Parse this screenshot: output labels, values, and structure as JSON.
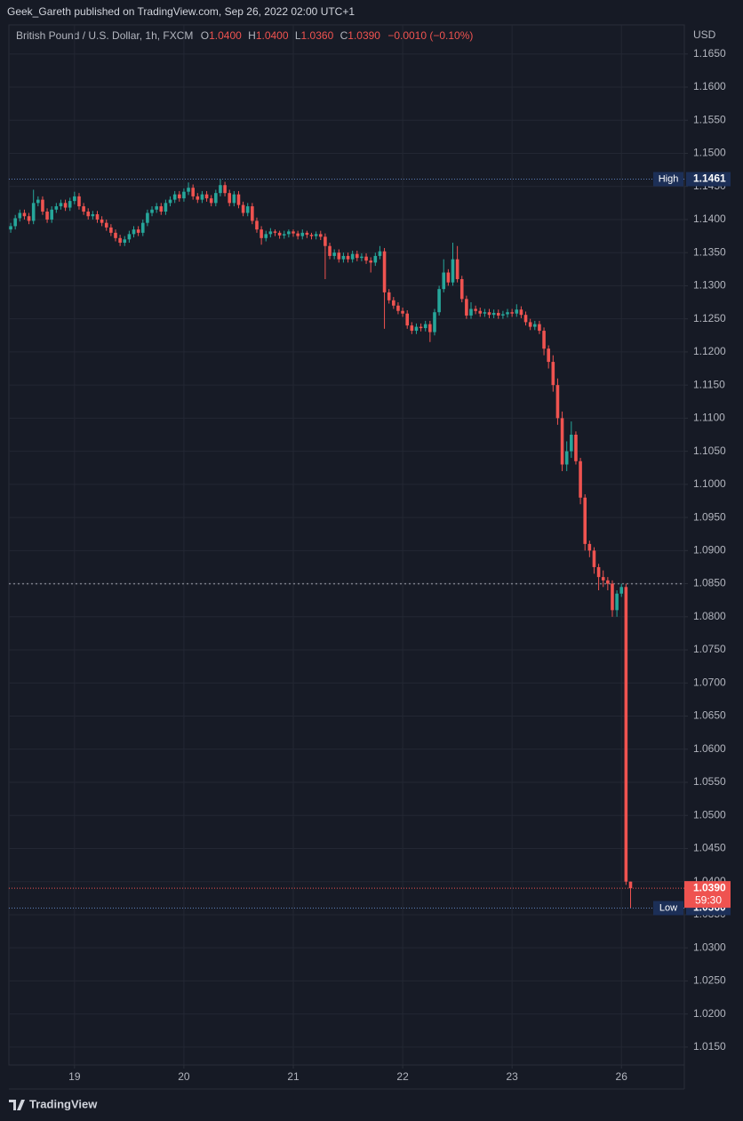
{
  "chart_data": {
    "type": "candlestick",
    "publisher_line": "Geek_Gareth published on TradingView.com, Sep 26, 2022 02:00 UTC+1",
    "title": "British Pound / U.S. Dollar, 1h, FXCM",
    "ohlc_header": {
      "o_label": "O",
      "o": "1.0400",
      "h_label": "H",
      "h": "1.0400",
      "l_label": "L",
      "l": "1.0360",
      "c_label": "C",
      "c": "1.0390",
      "change": "−0.0010 (−0.10%)"
    },
    "y_unit": "USD",
    "brand": "TradingView",
    "up_color": "#26a69a",
    "down_color": "#ef5350",
    "grid": true,
    "xlim": [
      -0.4,
      147.8
    ],
    "xticks": [
      {
        "value": 14,
        "label": "19"
      },
      {
        "value": 38,
        "label": "20"
      },
      {
        "value": 62,
        "label": "21"
      },
      {
        "value": 86,
        "label": "22"
      },
      {
        "value": 110,
        "label": "23"
      },
      {
        "value": 134,
        "label": "26"
      }
    ],
    "ylim": [
      1.0123,
      1.1694
    ],
    "yticks": [
      {
        "value": 1.015,
        "label": "1.0150"
      },
      {
        "value": 1.02,
        "label": "1.0200"
      },
      {
        "value": 1.025,
        "label": "1.0250"
      },
      {
        "value": 1.03,
        "label": "1.0300"
      },
      {
        "value": 1.035,
        "label": "1.0350"
      },
      {
        "value": 1.04,
        "label": "1.0400"
      },
      {
        "value": 1.045,
        "label": "1.0450"
      },
      {
        "value": 1.05,
        "label": "1.0500"
      },
      {
        "value": 1.055,
        "label": "1.0550"
      },
      {
        "value": 1.06,
        "label": "1.0600"
      },
      {
        "value": 1.065,
        "label": "1.0650"
      },
      {
        "value": 1.07,
        "label": "1.0700"
      },
      {
        "value": 1.075,
        "label": "1.0750"
      },
      {
        "value": 1.08,
        "label": "1.0800"
      },
      {
        "value": 1.085,
        "label": "1.0850"
      },
      {
        "value": 1.09,
        "label": "1.0900"
      },
      {
        "value": 1.095,
        "label": "1.0950"
      },
      {
        "value": 1.1,
        "label": "1.1000"
      },
      {
        "value": 1.105,
        "label": "1.1050"
      },
      {
        "value": 1.11,
        "label": "1.1100"
      },
      {
        "value": 1.115,
        "label": "1.1150"
      },
      {
        "value": 1.12,
        "label": "1.1200"
      },
      {
        "value": 1.125,
        "label": "1.1250"
      },
      {
        "value": 1.13,
        "label": "1.1300"
      },
      {
        "value": 1.135,
        "label": "1.1350"
      },
      {
        "value": 1.14,
        "label": "1.1400"
      },
      {
        "value": 1.145,
        "label": "1.1450"
      },
      {
        "value": 1.15,
        "label": "1.1500"
      },
      {
        "value": 1.155,
        "label": "1.1550"
      },
      {
        "value": 1.16,
        "label": "1.1600"
      },
      {
        "value": 1.165,
        "label": "1.1650"
      }
    ],
    "markers": [
      {
        "label": "High",
        "value": 1.1461,
        "value_label": "1.1461"
      },
      {
        "label": "Low",
        "value": 1.036,
        "value_label": "1.0360"
      }
    ],
    "last_price": {
      "value": 1.039,
      "value_label": "1.0390",
      "countdown": "59:30"
    },
    "hline": 1.085,
    "open": [
      1.1385,
      1.139,
      1.1402,
      1.141,
      1.1405,
      1.1398,
      1.1425,
      1.143,
      1.1412,
      1.14,
      1.1415,
      1.142,
      1.1425,
      1.1418,
      1.1428,
      1.1435,
      1.142,
      1.1412,
      1.1405,
      1.1408,
      1.14,
      1.1395,
      1.1388,
      1.138,
      1.1372,
      1.1365,
      1.137,
      1.1378,
      1.1385,
      1.138,
      1.1395,
      1.141,
      1.1415,
      1.142,
      1.1412,
      1.1425,
      1.143,
      1.1438,
      1.1432,
      1.1442,
      1.1448,
      1.1435,
      1.143,
      1.1438,
      1.1432,
      1.1425,
      1.144,
      1.1452,
      1.144,
      1.1425,
      1.1438,
      1.1422,
      1.141,
      1.142,
      1.1398,
      1.1385,
      1.1372,
      1.1378,
      1.1382,
      1.138,
      1.1376,
      1.1378,
      1.1382,
      1.1379,
      1.1375,
      1.138,
      1.1377,
      1.1375,
      1.1378,
      1.1374,
      1.136,
      1.1345,
      1.135,
      1.134,
      1.1345,
      1.134,
      1.1348,
      1.1342,
      1.1344,
      1.1338,
      1.1335,
      1.1345,
      1.1352,
      1.129,
      1.1278,
      1.127,
      1.1262,
      1.1258,
      1.124,
      1.1232,
      1.1238,
      1.1236,
      1.1242,
      1.123,
      1.126,
      1.1295,
      1.132,
      1.1305,
      1.134,
      1.131,
      1.128,
      1.1255,
      1.1265,
      1.1262,
      1.1258,
      1.126,
      1.1256,
      1.1259,
      1.1255,
      1.1257,
      1.126,
      1.1258,
      1.1264,
      1.1256,
      1.1245,
      1.1238,
      1.1242,
      1.1232,
      1.1205,
      1.1185,
      1.115,
      1.11,
      1.103,
      1.105,
      1.1075,
      1.1035,
      1.098,
      1.091,
      1.09,
      1.0875,
      1.086,
      1.0855,
      1.085,
      1.081,
      1.0835,
      1.0845,
      1.04
    ],
    "high": [
      1.1395,
      1.1407,
      1.1415,
      1.1415,
      1.141,
      1.1445,
      1.1435,
      1.1435,
      1.1417,
      1.142,
      1.1425,
      1.143,
      1.143,
      1.1433,
      1.1442,
      1.144,
      1.1425,
      1.1417,
      1.1413,
      1.1413,
      1.1405,
      1.14,
      1.1393,
      1.1385,
      1.1377,
      1.1375,
      1.1383,
      1.139,
      1.139,
      1.14,
      1.1415,
      1.142,
      1.1425,
      1.1425,
      1.143,
      1.1435,
      1.1443,
      1.1443,
      1.1447,
      1.1456,
      1.1453,
      1.144,
      1.1443,
      1.1443,
      1.1437,
      1.1445,
      1.1461,
      1.1457,
      1.1445,
      1.1443,
      1.1443,
      1.1427,
      1.1425,
      1.1425,
      1.1403,
      1.139,
      1.1383,
      1.1387,
      1.1385,
      1.1383,
      1.1383,
      1.1385,
      1.1385,
      1.1383,
      1.1385,
      1.1383,
      1.138,
      1.1382,
      1.1383,
      1.1379,
      1.1365,
      1.1355,
      1.1355,
      1.135,
      1.135,
      1.1353,
      1.1353,
      1.1349,
      1.1349,
      1.1343,
      1.135,
      1.136,
      1.1357,
      1.1295,
      1.1283,
      1.1275,
      1.1267,
      1.1263,
      1.1245,
      1.1243,
      1.1243,
      1.1247,
      1.1247,
      1.1265,
      1.13,
      1.134,
      1.1325,
      1.1365,
      1.136,
      1.1315,
      1.1285,
      1.1275,
      1.127,
      1.1267,
      1.1265,
      1.1265,
      1.1264,
      1.1264,
      1.1262,
      1.1265,
      1.1265,
      1.1272,
      1.1269,
      1.1261,
      1.125,
      1.1247,
      1.1247,
      1.1237,
      1.121,
      1.1195,
      1.116,
      1.111,
      1.1065,
      1.1095,
      1.108,
      1.104,
      1.0985,
      1.0915,
      1.0905,
      1.088,
      1.087,
      1.086,
      1.0855,
      1.084,
      1.085,
      1.085,
      1.04
    ],
    "low": [
      1.138,
      1.1385,
      1.1397,
      1.14,
      1.1393,
      1.1393,
      1.142,
      1.1407,
      1.1395,
      1.1395,
      1.141,
      1.1415,
      1.1413,
      1.1413,
      1.1423,
      1.1415,
      1.1407,
      1.14,
      1.14,
      1.1395,
      1.139,
      1.1383,
      1.1375,
      1.1367,
      1.136,
      1.136,
      1.1365,
      1.1373,
      1.1375,
      1.1375,
      1.139,
      1.1405,
      1.141,
      1.1407,
      1.1407,
      1.142,
      1.1425,
      1.1427,
      1.1427,
      1.1437,
      1.143,
      1.1425,
      1.1425,
      1.1427,
      1.142,
      1.142,
      1.1435,
      1.1435,
      1.142,
      1.142,
      1.1417,
      1.1405,
      1.1405,
      1.1393,
      1.138,
      1.1362,
      1.1367,
      1.1373,
      1.1375,
      1.1371,
      1.1371,
      1.1373,
      1.1374,
      1.137,
      1.137,
      1.1372,
      1.137,
      1.137,
      1.1369,
      1.131,
      1.134,
      1.134,
      1.1335,
      1.1335,
      1.1335,
      1.1335,
      1.1337,
      1.1337,
      1.1333,
      1.132,
      1.133,
      1.134,
      1.1235,
      1.1273,
      1.1265,
      1.1257,
      1.1253,
      1.1235,
      1.1227,
      1.1227,
      1.1231,
      1.1231,
      1.1215,
      1.1225,
      1.1255,
      1.129,
      1.13,
      1.13,
      1.1305,
      1.1275,
      1.125,
      1.125,
      1.1257,
      1.1253,
      1.1253,
      1.1251,
      1.1251,
      1.125,
      1.125,
      1.1252,
      1.1253,
      1.1253,
      1.1251,
      1.124,
      1.1233,
      1.1233,
      1.1227,
      1.1195,
      1.1175,
      1.114,
      1.109,
      1.102,
      1.102,
      1.104,
      1.103,
      1.097,
      1.09,
      1.089,
      1.0865,
      1.084,
      1.0845,
      1.084,
      1.08,
      1.08,
      1.083,
      1.0395,
      1.036
    ],
    "close": [
      1.139,
      1.1402,
      1.141,
      1.1405,
      1.1398,
      1.1425,
      1.143,
      1.1412,
      1.14,
      1.1415,
      1.142,
      1.1425,
      1.1418,
      1.1428,
      1.1435,
      1.142,
      1.1412,
      1.1405,
      1.1408,
      1.14,
      1.1395,
      1.1388,
      1.138,
      1.1372,
      1.1365,
      1.137,
      1.1378,
      1.1385,
      1.138,
      1.1395,
      1.141,
      1.1415,
      1.142,
      1.1412,
      1.1425,
      1.143,
      1.1438,
      1.1432,
      1.1442,
      1.1448,
      1.1435,
      1.143,
      1.1438,
      1.1432,
      1.1425,
      1.144,
      1.1452,
      1.144,
      1.1425,
      1.1438,
      1.1422,
      1.141,
      1.142,
      1.1398,
      1.1385,
      1.1372,
      1.1378,
      1.1382,
      1.138,
      1.1376,
      1.1378,
      1.1382,
      1.1379,
      1.1375,
      1.138,
      1.1377,
      1.1375,
      1.1378,
      1.1374,
      1.136,
      1.1345,
      1.135,
      1.134,
      1.1345,
      1.134,
      1.1348,
      1.1342,
      1.1344,
      1.1338,
      1.1335,
      1.1345,
      1.1352,
      1.129,
      1.1278,
      1.127,
      1.1262,
      1.1258,
      1.124,
      1.1232,
      1.1238,
      1.1236,
      1.1242,
      1.123,
      1.126,
      1.1295,
      1.132,
      1.1305,
      1.134,
      1.131,
      1.128,
      1.1255,
      1.1265,
      1.1262,
      1.1258,
      1.126,
      1.1256,
      1.1259,
      1.1255,
      1.1257,
      1.126,
      1.1258,
      1.1264,
      1.1256,
      1.1245,
      1.1238,
      1.1242,
      1.1232,
      1.1205,
      1.1185,
      1.115,
      1.11,
      1.103,
      1.105,
      1.1075,
      1.1035,
      1.098,
      1.091,
      1.09,
      1.0875,
      1.086,
      1.0855,
      1.085,
      1.081,
      1.0835,
      1.0845,
      1.04,
      1.039
    ]
  }
}
